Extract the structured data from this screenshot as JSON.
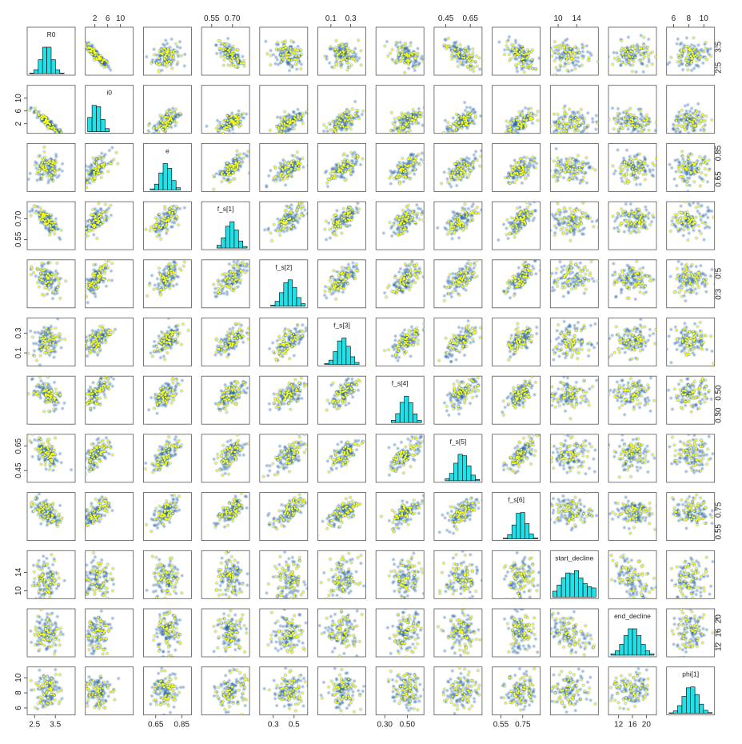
{
  "chart_data": {
    "type": "scatter",
    "variables": [
      {
        "name": "R0",
        "range": [
          2.3,
          4.3
        ],
        "ticks": [
          "2.5",
          "3.5"
        ],
        "mode": 3.1,
        "spread": 0.25
      },
      {
        "name": "i0",
        "range": [
          0,
          13
        ],
        "ticks": [
          "2",
          "6",
          "10"
        ],
        "mode": 2.5,
        "spread": 1.6
      },
      {
        "name": "e",
        "range": [
          0.58,
          0.9
        ],
        "ticks": [
          "0.65",
          "0.85"
        ],
        "mode": 0.73,
        "spread": 0.04
      },
      {
        "name": "f_s[1]",
        "range": [
          0.5,
          0.8
        ],
        "ticks": [
          "0.55",
          "0.70"
        ],
        "mode": 0.69,
        "spread": 0.04
      },
      {
        "name": "f_s[2]",
        "range": [
          0.2,
          0.6
        ],
        "ticks": [
          "0.3",
          "0.5"
        ],
        "mode": 0.45,
        "spread": 0.06
      },
      {
        "name": "f_s[3]",
        "range": [
          0,
          0.42
        ],
        "ticks": [
          "0.1",
          "0.3"
        ],
        "mode": 0.22,
        "spread": 0.06
      },
      {
        "name": "f_s[4]",
        "range": [
          0.25,
          0.62
        ],
        "ticks": [
          "0.30",
          "0.50"
        ],
        "mode": 0.49,
        "spread": 0.05
      },
      {
        "name": "f_s[5]",
        "range": [
          0.38,
          0.72
        ],
        "ticks": [
          "0.45",
          "0.65"
        ],
        "mode": 0.58,
        "spread": 0.05
      },
      {
        "name": "f_s[6]",
        "range": [
          0.5,
          0.88
        ],
        "ticks": [
          "0.55",
          "0.75"
        ],
        "mode": 0.73,
        "spread": 0.05
      },
      {
        "name": "start_decline",
        "range": [
          9,
          18
        ],
        "ticks": [
          "10",
          "14"
        ],
        "mode": 12.5,
        "spread": 1.8
      },
      {
        "name": "end_decline",
        "range": [
          10,
          22
        ],
        "ticks": [
          "12",
          "16",
          "20"
        ],
        "mode": 16,
        "spread": 2.2
      },
      {
        "name": "phi[1]",
        "range": [
          5.5,
          11
        ],
        "ticks": [
          "6",
          "8",
          "10"
        ],
        "mode": 8.3,
        "spread": 0.9
      }
    ],
    "colors": {
      "density": "#1f5fa0",
      "highlight": "#ffff00",
      "histogram_fill": "#22e0e8",
      "frame": "#555555"
    }
  }
}
